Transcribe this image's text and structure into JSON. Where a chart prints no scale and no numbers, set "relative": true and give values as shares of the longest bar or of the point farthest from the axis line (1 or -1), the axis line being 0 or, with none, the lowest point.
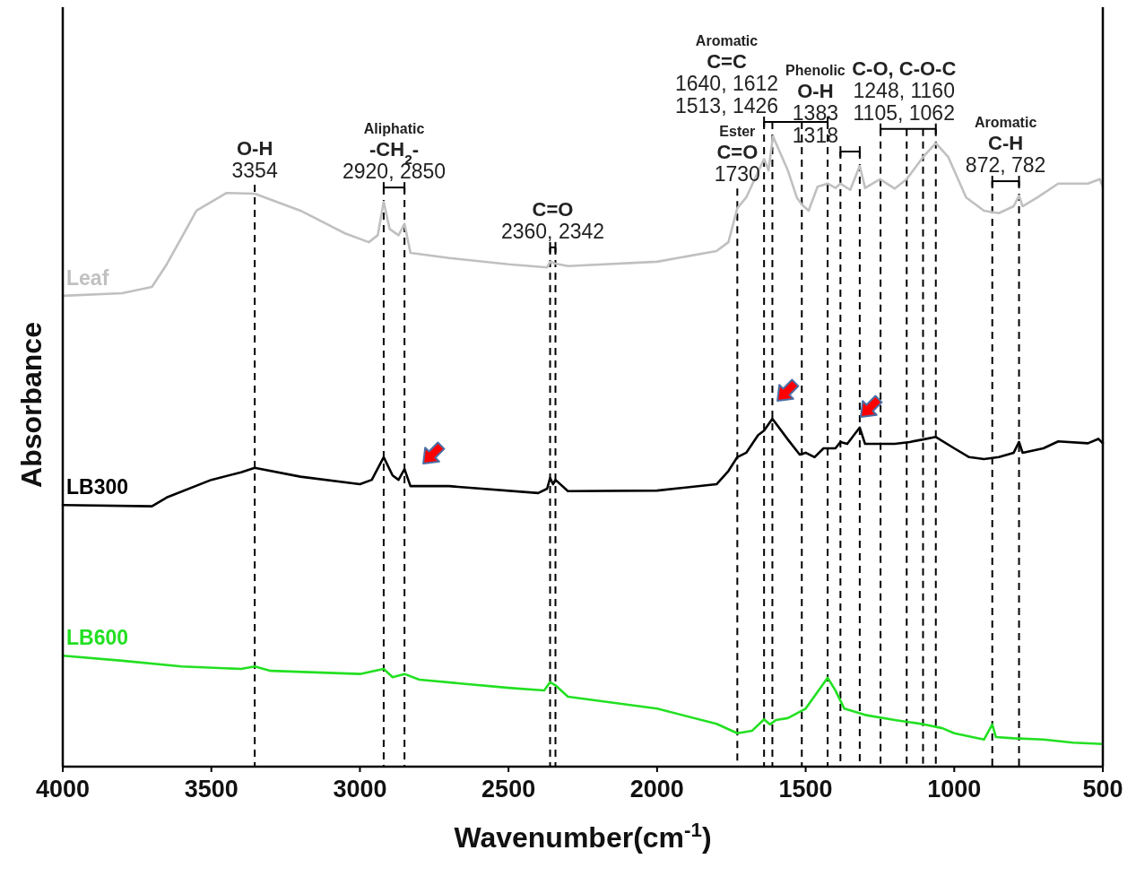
{
  "chart_data": {
    "type": "line",
    "relative": true,
    "xlabel": "Wavenumber(cm$^{-1}$)",
    "ylabel": "Absorbance",
    "xlim": [
      4000,
      500
    ],
    "xticks": [
      4000,
      3500,
      3000,
      2500,
      2000,
      1500,
      1000,
      500
    ],
    "legend": false,
    "line_style": "solid",
    "series": [
      {
        "name": "Leaf",
        "color": "#c0c0c0",
        "x": [
          4000,
          3800,
          3700,
          3650,
          3550,
          3450,
          3354,
          3200,
          3050,
          2970,
          2940,
          2920,
          2900,
          2870,
          2850,
          2830,
          2700,
          2500,
          2370,
          2360,
          2342,
          2300,
          2000,
          1800,
          1760,
          1730,
          1700,
          1640,
          1625,
          1610,
          1560,
          1530,
          1513,
          1490,
          1460,
          1426,
          1400,
          1383,
          1350,
          1318,
          1300,
          1250,
          1200,
          1160,
          1105,
          1062,
          1020,
          960,
          900,
          850,
          800,
          782,
          770,
          720,
          650,
          550,
          510,
          500
        ],
        "values": [
          0.747,
          0.751,
          0.761,
          0.797,
          0.882,
          0.91,
          0.909,
          0.882,
          0.846,
          0.832,
          0.843,
          0.896,
          0.853,
          0.843,
          0.861,
          0.815,
          0.807,
          0.797,
          0.792,
          0.801,
          0.798,
          0.794,
          0.801,
          0.818,
          0.832,
          0.886,
          0.903,
          0.964,
          0.946,
          1.0,
          0.946,
          0.903,
          0.892,
          0.882,
          0.92,
          0.925,
          0.918,
          0.925,
          0.915,
          0.953,
          0.918,
          0.932,
          0.917,
          0.932,
          0.967,
          0.989,
          0.967,
          0.903,
          0.882,
          0.878,
          0.889,
          0.906,
          0.889,
          0.903,
          0.925,
          0.925,
          0.932,
          0.92
        ]
      },
      {
        "name": "LB300",
        "color": "#000000",
        "x": [
          4000,
          3700,
          3650,
          3500,
          3400,
          3354,
          3200,
          3000,
          2960,
          2920,
          2890,
          2870,
          2850,
          2830,
          2700,
          2400,
          2370,
          2360,
          2350,
          2342,
          2300,
          2000,
          1800,
          1760,
          1730,
          1700,
          1660,
          1640,
          1612,
          1560,
          1520,
          1500,
          1470,
          1440,
          1400,
          1383,
          1360,
          1318,
          1300,
          1200,
          1150,
          1105,
          1062,
          1000,
          950,
          900,
          850,
          800,
          782,
          770,
          700,
          650,
          550,
          515,
          500
        ],
        "values": [
          0.415,
          0.413,
          0.427,
          0.455,
          0.467,
          0.474,
          0.46,
          0.448,
          0.455,
          0.491,
          0.462,
          0.455,
          0.472,
          0.445,
          0.445,
          0.434,
          0.441,
          0.458,
          0.448,
          0.455,
          0.437,
          0.438,
          0.448,
          0.469,
          0.491,
          0.498,
          0.526,
          0.533,
          0.552,
          0.519,
          0.495,
          0.498,
          0.491,
          0.505,
          0.505,
          0.515,
          0.512,
          0.538,
          0.512,
          0.512,
          0.515,
          0.519,
          0.523,
          0.505,
          0.491,
          0.488,
          0.491,
          0.498,
          0.515,
          0.498,
          0.505,
          0.516,
          0.513,
          0.52,
          0.513
        ]
      },
      {
        "name": "LB600",
        "color": "#22e022",
        "x": [
          4000,
          3800,
          3600,
          3400,
          3354,
          3300,
          3000,
          2920,
          2890,
          2850,
          2800,
          2500,
          2380,
          2360,
          2342,
          2300,
          2000,
          1800,
          1730,
          1680,
          1640,
          1620,
          1600,
          1560,
          1500,
          1426,
          1400,
          1370,
          1300,
          1200,
          1100,
          1040,
          1000,
          900,
          872,
          860,
          800,
          700,
          600,
          500
        ],
        "values": [
          0.176,
          0.168,
          0.159,
          0.155,
          0.159,
          0.152,
          0.147,
          0.155,
          0.142,
          0.147,
          0.138,
          0.125,
          0.121,
          0.134,
          0.129,
          0.111,
          0.092,
          0.068,
          0.053,
          0.057,
          0.075,
          0.067,
          0.074,
          0.077,
          0.092,
          0.141,
          0.121,
          0.092,
          0.082,
          0.074,
          0.067,
          0.061,
          0.053,
          0.043,
          0.067,
          0.047,
          0.045,
          0.043,
          0.038,
          0.036
        ]
      }
    ],
    "ref_lines": [
      {
        "axis": "x",
        "value": 3354,
        "color": "#000000",
        "line_style": "dashed"
      },
      {
        "axis": "x",
        "value": 2920,
        "color": "#000000",
        "line_style": "dashed"
      },
      {
        "axis": "x",
        "value": 2850,
        "color": "#000000",
        "line_style": "dashed"
      },
      {
        "axis": "x",
        "value": 2360,
        "color": "#000000",
        "line_style": "dashed"
      },
      {
        "axis": "x",
        "value": 2342,
        "color": "#000000",
        "line_style": "dashed"
      },
      {
        "axis": "x",
        "value": 1730,
        "color": "#000000",
        "line_style": "dashed"
      },
      {
        "axis": "x",
        "value": 1640,
        "color": "#000000",
        "line_style": "dashed"
      },
      {
        "axis": "x",
        "value": 1612,
        "color": "#000000",
        "line_style": "dashed"
      },
      {
        "axis": "x",
        "value": 1513,
        "color": "#000000",
        "line_style": "dashed"
      },
      {
        "axis": "x",
        "value": 1426,
        "color": "#000000",
        "line_style": "dashed"
      },
      {
        "axis": "x",
        "value": 1383,
        "color": "#000000",
        "line_style": "dashed"
      },
      {
        "axis": "x",
        "value": 1318,
        "color": "#000000",
        "line_style": "dashed"
      },
      {
        "axis": "x",
        "value": 1248,
        "color": "#000000",
        "line_style": "dashed"
      },
      {
        "axis": "x",
        "value": 1160,
        "color": "#000000",
        "line_style": "dashed"
      },
      {
        "axis": "x",
        "value": 1105,
        "color": "#000000",
        "line_style": "dashed"
      },
      {
        "axis": "x",
        "value": 1062,
        "color": "#000000",
        "line_style": "dashed"
      },
      {
        "axis": "x",
        "value": 872,
        "color": "#000000",
        "line_style": "dashed"
      },
      {
        "axis": "x",
        "value": 782,
        "color": "#000000",
        "line_style": "dashed"
      }
    ],
    "annotations": [
      "O-H\n3354",
      "Aliphatic\n-CH$_{2}$-\n2920, 2850",
      "C=O\n2360, 2342",
      "Ester\nC=O\n1730",
      "Aromatic\nC=C\n1640, 1612\n1513, 1426",
      "Phenolic\nO-H\n1383\n1318",
      "C-O, C-O-C\n1248, 1160\n1105, 1062",
      "Aromatic\nC-H\n872, 782"
    ]
  }
}
